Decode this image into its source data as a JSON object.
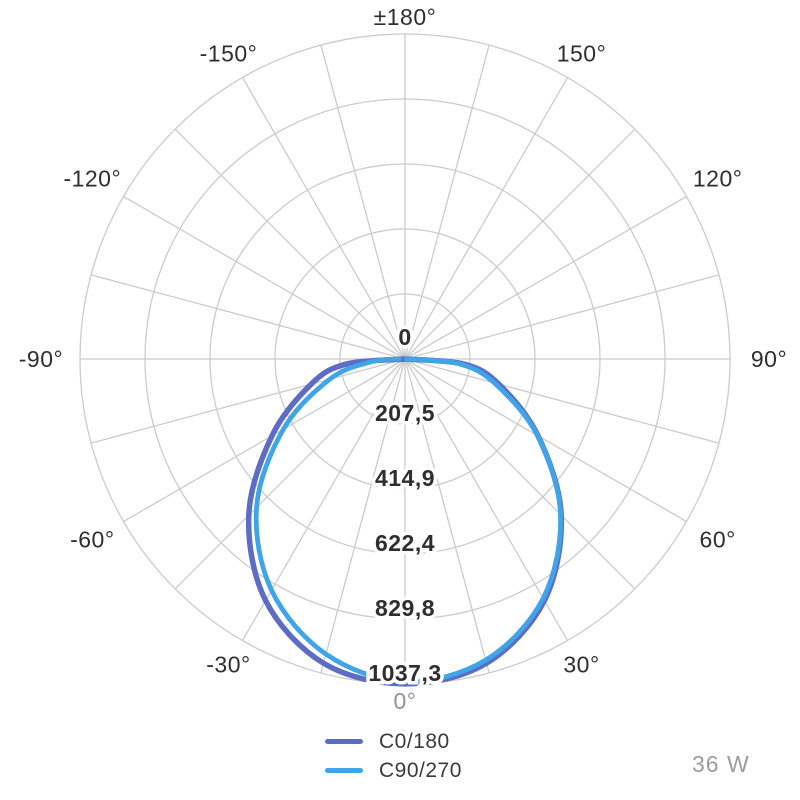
{
  "colors": {
    "background": "#ffffff",
    "grid": "#cbcbcd",
    "text_dark": "#2e2e2e",
    "text_muted": "#929296"
  },
  "chart_data": {
    "type": "polar",
    "description": "Luminous intensity distribution curve (photometric polar diagram), 0° at bottom",
    "angle_step_deg": 15,
    "max_value": 1037.3,
    "center_label": "0",
    "rings": [
      {
        "value": 207.5,
        "label": "207,5"
      },
      {
        "value": 414.9,
        "label": "414,9"
      },
      {
        "value": 622.4,
        "label": "622,4"
      },
      {
        "value": 829.8,
        "label": "829,8"
      },
      {
        "value": 1037.3,
        "label": "1037,3"
      }
    ],
    "angle_labels": [
      {
        "angle": 180,
        "label": "±180°",
        "muted": false
      },
      {
        "angle": -150,
        "label": "-150°",
        "muted": false
      },
      {
        "angle": 150,
        "label": "150°",
        "muted": false
      },
      {
        "angle": -120,
        "label": "-120°",
        "muted": false
      },
      {
        "angle": 120,
        "label": "120°",
        "muted": false
      },
      {
        "angle": -90,
        "label": "-90°",
        "muted": false
      },
      {
        "angle": 90,
        "label": "90°",
        "muted": false
      },
      {
        "angle": -60,
        "label": "-60°",
        "muted": false
      },
      {
        "angle": 60,
        "label": "60°",
        "muted": false
      },
      {
        "angle": -30,
        "label": "-30°",
        "muted": false
      },
      {
        "angle": 30,
        "label": "30°",
        "muted": false
      },
      {
        "angle": 0,
        "label": "0°",
        "muted": true
      }
    ],
    "series": [
      {
        "name": "C0/180",
        "color": "#5d6dc3",
        "stroke_width": 5.5,
        "points": [
          [
            -90,
            0
          ],
          [
            -85,
            190
          ],
          [
            -75,
            310
          ],
          [
            -60,
            490
          ],
          [
            -45,
            705
          ],
          [
            -30,
            890
          ],
          [
            -15,
            1005
          ],
          [
            0,
            1037
          ],
          [
            15,
            1005
          ],
          [
            30,
            890
          ],
          [
            45,
            705
          ],
          [
            60,
            490
          ],
          [
            75,
            310
          ],
          [
            85,
            190
          ],
          [
            90,
            0
          ]
        ]
      },
      {
        "name": "C90/270",
        "color": "#3fa4e8",
        "stroke_width": 4.8,
        "points": [
          [
            -90,
            18
          ],
          [
            -85,
            112
          ],
          [
            -75,
            248
          ],
          [
            -60,
            448
          ],
          [
            -45,
            670
          ],
          [
            -30,
            852
          ],
          [
            -15,
            975
          ],
          [
            0,
            1030
          ],
          [
            15,
            995
          ],
          [
            30,
            882
          ],
          [
            45,
            702
          ],
          [
            60,
            488
          ],
          [
            75,
            295
          ],
          [
            85,
            170
          ],
          [
            90,
            4
          ]
        ]
      }
    ]
  },
  "footer": {
    "wattage": "36 W"
  }
}
